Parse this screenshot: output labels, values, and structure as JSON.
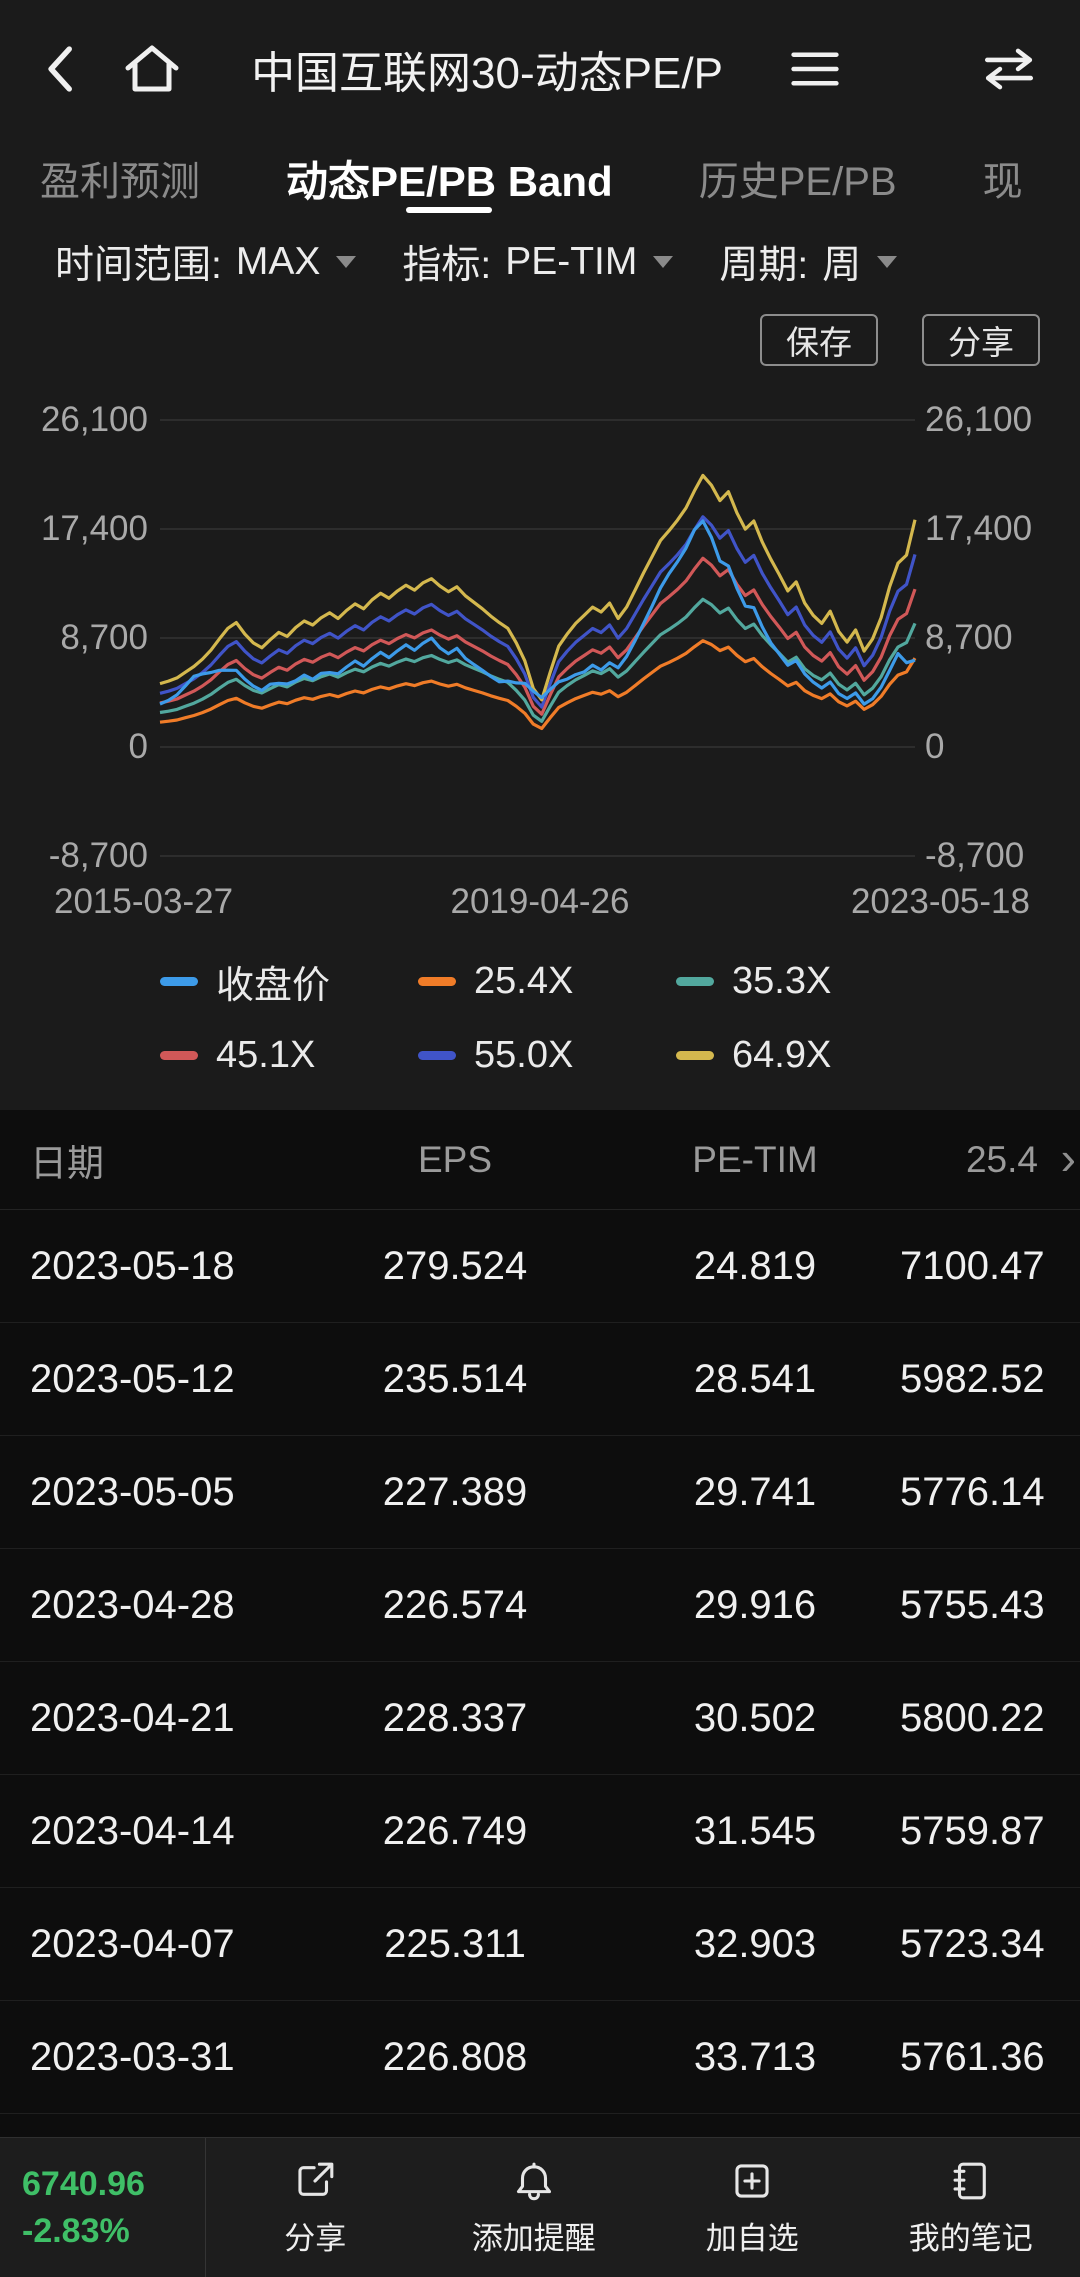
{
  "topbar": {
    "title": "中国互联网30-动态PE/P"
  },
  "tabs": [
    {
      "label": "盈利预测",
      "active": false
    },
    {
      "label": "动态PE/PB Band",
      "active": true
    },
    {
      "label": "历史PE/PB",
      "active": false
    },
    {
      "label": "现",
      "active": false
    }
  ],
  "filters": [
    {
      "label": "时间范围:",
      "value": "MAX"
    },
    {
      "label": "指标:",
      "value": "PE-TIM"
    },
    {
      "label": "周期:",
      "value": "周"
    }
  ],
  "chart_actions": {
    "save": "保存",
    "share": "分享"
  },
  "chart_data": {
    "type": "line",
    "x_tick_labels": [
      "2015-03-27",
      "2019-04-26",
      "2023-05-18"
    ],
    "y_tick_labels": [
      "26,100",
      "17,400",
      "8,700",
      "0",
      "-8,700"
    ],
    "y_ticks": [
      26100,
      17400,
      8700,
      0,
      -8700
    ],
    "y_range": [
      -8700,
      26100
    ],
    "grid": true,
    "legend_position": "bottom",
    "series_names": [
      "收盘价",
      "25.4X",
      "35.3X",
      "45.1X",
      "55.0X",
      "64.9X"
    ],
    "series_colors": [
      "#3d9be9",
      "#f07c28",
      "#52a89e",
      "#d15858",
      "#4054c8",
      "#d4b84e"
    ],
    "multiples": [
      25.4,
      35.3,
      45.1,
      55.0,
      64.9
    ],
    "eps": [
      78,
      81,
      85,
      92,
      99,
      108,
      119,
      133,
      146,
      153,
      139,
      128,
      122,
      132,
      141,
      136,
      147,
      155,
      150,
      159,
      165,
      158,
      168,
      176,
      170,
      181,
      189,
      183,
      192,
      199,
      193,
      202,
      207,
      198,
      191,
      197,
      186,
      178,
      170,
      161,
      153,
      146,
      128,
      106,
      72,
      58,
      92,
      124,
      139,
      152,
      162,
      172,
      166,
      177,
      158,
      172,
      193,
      214,
      234,
      254,
      266,
      279,
      294,
      315,
      334,
      322,
      303,
      314,
      288,
      268,
      278,
      252,
      231,
      212,
      192,
      203,
      177,
      162,
      152,
      167,
      142,
      129,
      144,
      118,
      133,
      159,
      197,
      226,
      236,
      279.5
    ],
    "pe": [
      44,
      46,
      49,
      53,
      57,
      54,
      50,
      46,
      42,
      40,
      39,
      38,
      37,
      38,
      36,
      37,
      36,
      37,
      36,
      37,
      36,
      37,
      38,
      39,
      38,
      39,
      40,
      39,
      40,
      41,
      40,
      41,
      42,
      40,
      39,
      40,
      38,
      37,
      36,
      35,
      34,
      36,
      40,
      48,
      62,
      68,
      50,
      42,
      39,
      38,
      37,
      38,
      37,
      38,
      40,
      42,
      44,
      46,
      48,
      50,
      52,
      53,
      54,
      55,
      54,
      52,
      49,
      46,
      44,
      42,
      40,
      38,
      36,
      35,
      34,
      34,
      33,
      32,
      31,
      31,
      30,
      30,
      30,
      29,
      29,
      30,
      31,
      33,
      28.5,
      24.8
    ]
  },
  "table": {
    "headers": [
      "日期",
      "EPS",
      "PE-TIM",
      "25.4"
    ],
    "rows": [
      {
        "date": "2023-05-18",
        "eps": "279.524",
        "pe": "24.819",
        "band": "7100.47"
      },
      {
        "date": "2023-05-12",
        "eps": "235.514",
        "pe": "28.541",
        "band": "5982.52"
      },
      {
        "date": "2023-05-05",
        "eps": "227.389",
        "pe": "29.741",
        "band": "5776.14"
      },
      {
        "date": "2023-04-28",
        "eps": "226.574",
        "pe": "29.916",
        "band": "5755.43"
      },
      {
        "date": "2023-04-21",
        "eps": "228.337",
        "pe": "30.502",
        "band": "5800.22"
      },
      {
        "date": "2023-04-14",
        "eps": "226.749",
        "pe": "31.545",
        "band": "5759.87"
      },
      {
        "date": "2023-04-07",
        "eps": "225.311",
        "pe": "32.903",
        "band": "5723.34"
      },
      {
        "date": "2023-03-31",
        "eps": "226.808",
        "pe": "33.713",
        "band": "5761.36"
      }
    ]
  },
  "bottombar": {
    "price": "6740.96",
    "change": "-2.83%",
    "price_color": "#3fbf67",
    "items": [
      {
        "label": "分享"
      },
      {
        "label": "添加提醒"
      },
      {
        "label": "加自选"
      },
      {
        "label": "我的笔记"
      }
    ]
  }
}
